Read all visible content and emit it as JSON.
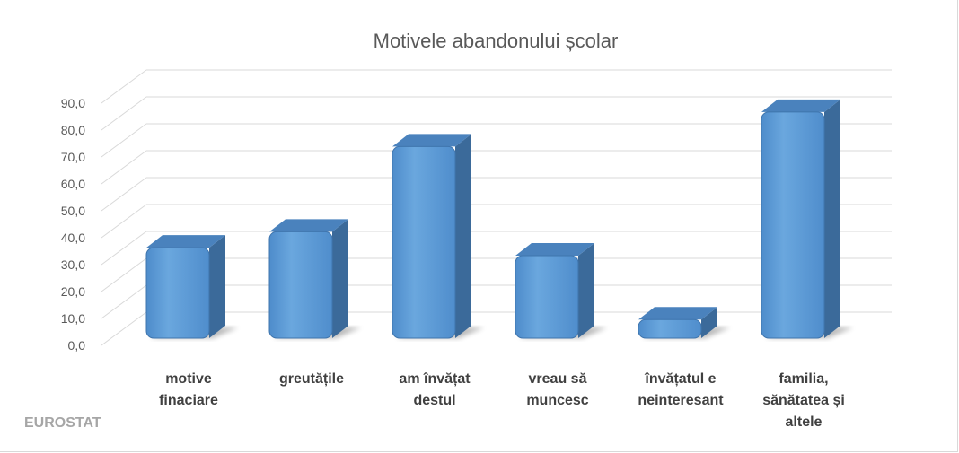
{
  "chart_data": {
    "type": "bar",
    "title": "Motivele abandonului școlar",
    "xlabel": "",
    "ylabel": "",
    "categories": [
      [
        "motive",
        "finaciare"
      ],
      [
        "greutățile"
      ],
      [
        "am învățat",
        "destul"
      ],
      [
        "vreau să",
        "muncesc"
      ],
      [
        "învățatul e",
        "neinteresant"
      ],
      [
        "familia,",
        "sănătatea și",
        "altele"
      ]
    ],
    "values": [
      34,
      40,
      72,
      31,
      7,
      85
    ],
    "ylim": [
      0,
      90
    ],
    "yticks": [
      "0,0",
      "10,0",
      "20,0",
      "30,0",
      "40,0",
      "50,0",
      "60,0",
      "70,0",
      "80,0",
      "90,0"
    ],
    "grid": true,
    "legend": "none"
  },
  "source": "EUROSTAT",
  "colors": {
    "bar_front": "#5b9bd5",
    "bar_top": "#4a82bd",
    "bar_side": "#3b6a9a",
    "grid": "#d9d9d9",
    "text": "#595959",
    "category_text": "#404040",
    "source_text": "#a6a6a6"
  }
}
